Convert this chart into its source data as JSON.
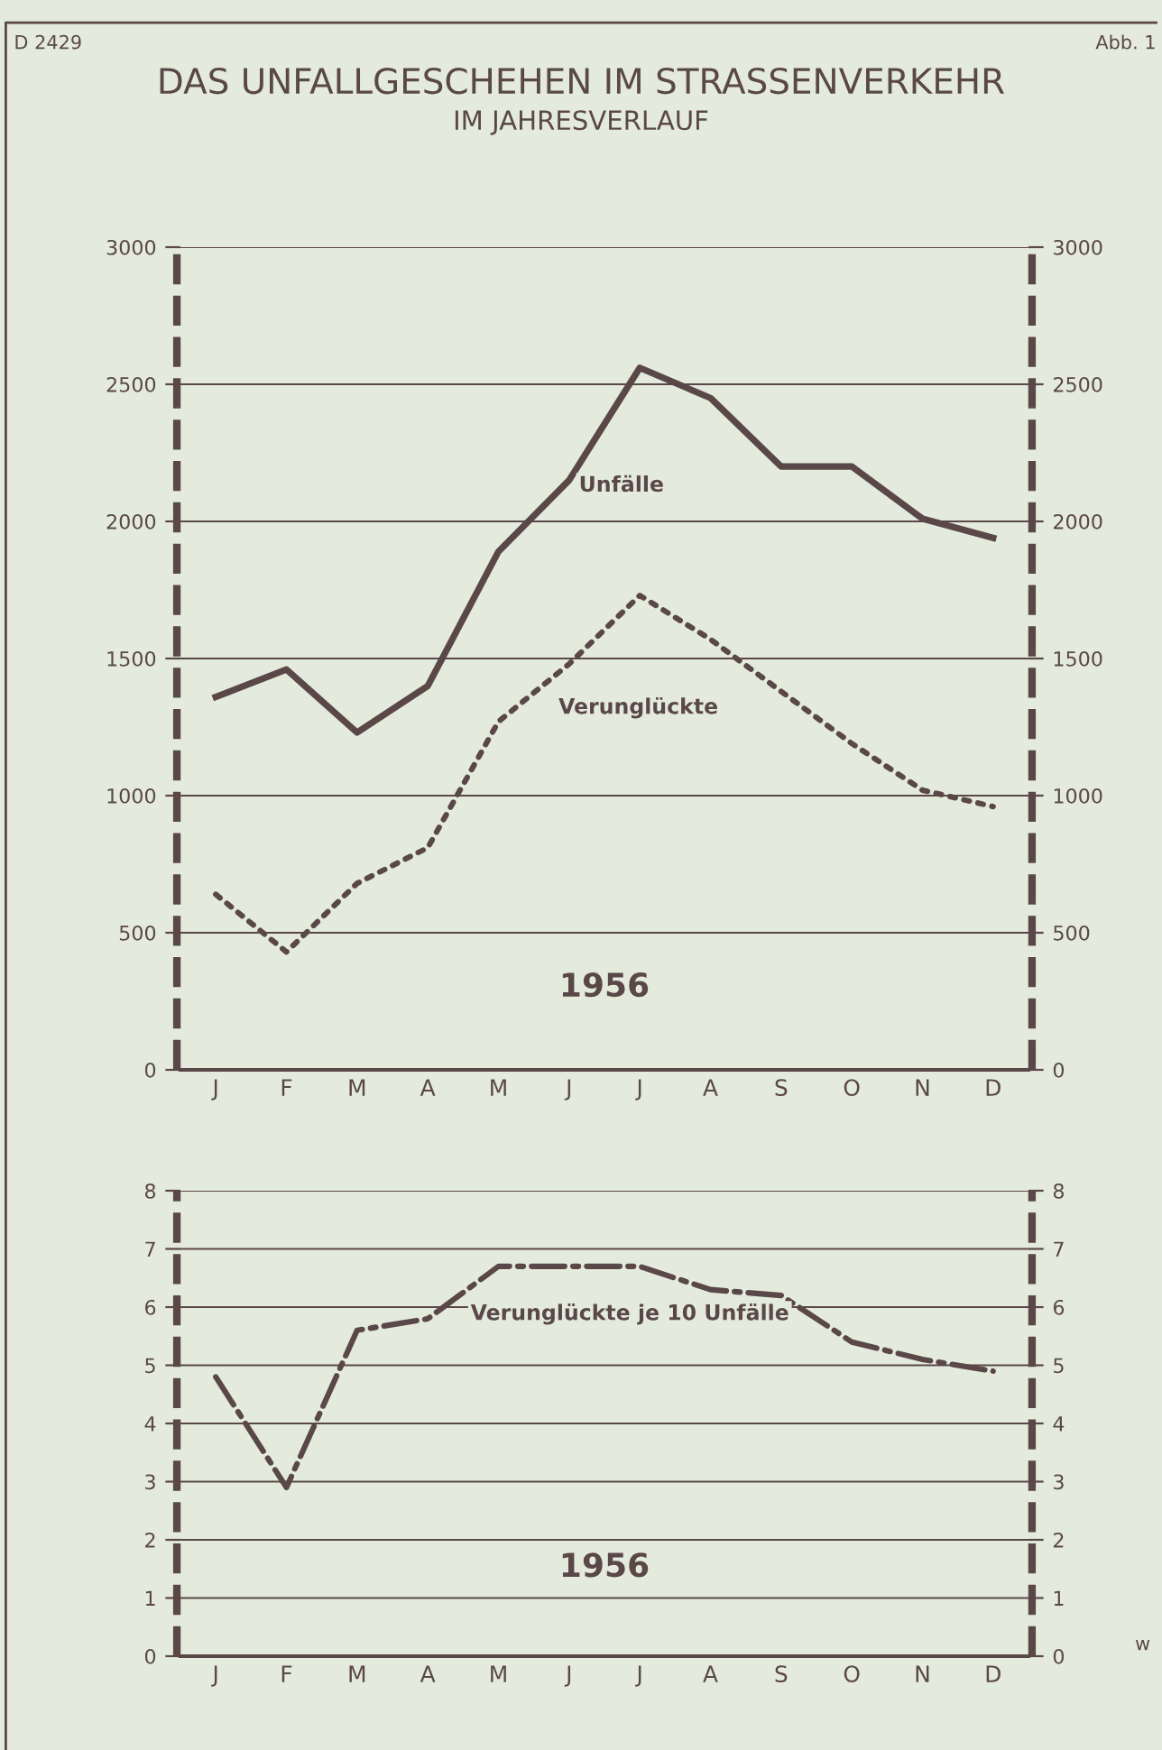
{
  "chart_data": [
    {
      "type": "line",
      "title": "DAS UNFALLGESCHEHEN IM STRASSENVERKEHR",
      "subtitle": "IM JAHRESVERLAUF",
      "annotations": [
        "D 2429",
        "Abb. 1",
        "1956"
      ],
      "categories": [
        "J",
        "F",
        "M",
        "A",
        "M",
        "J",
        "J",
        "A",
        "S",
        "O",
        "N",
        "D"
      ],
      "series": [
        {
          "name": "Unfälle",
          "color": "#5a4848",
          "line_style": "solid",
          "values": [
            1360,
            1460,
            1230,
            1400,
            1890,
            2150,
            2560,
            2450,
            2200,
            2200,
            2010,
            1940
          ]
        },
        {
          "name": "Verunglückte",
          "color": "#5a4848",
          "line_style": "dotted",
          "values": [
            640,
            430,
            680,
            810,
            1270,
            1480,
            1730,
            1570,
            1380,
            1190,
            1020,
            960
          ]
        }
      ],
      "ylim": [
        0,
        3000
      ],
      "yticks": [
        0,
        500,
        1000,
        1500,
        2000,
        2500,
        3000
      ],
      "y2lim": [
        0,
        3000
      ],
      "y2ticks": [
        0,
        500,
        1000,
        1500,
        2000,
        2500,
        3000
      ],
      "grid": "y",
      "legend": false,
      "marker": "none"
    },
    {
      "type": "line",
      "annotations": [
        "1956",
        "w"
      ],
      "categories": [
        "J",
        "F",
        "M",
        "A",
        "M",
        "J",
        "J",
        "A",
        "S",
        "O",
        "N",
        "D"
      ],
      "series": [
        {
          "name": "Verunglückte je 10 Unfälle",
          "color": "#5a4848",
          "line_style": "dashed",
          "values": [
            4.8,
            2.9,
            5.6,
            5.8,
            6.7,
            6.7,
            6.7,
            6.3,
            6.2,
            5.4,
            5.1,
            4.9
          ]
        }
      ],
      "ylim": [
        0,
        8
      ],
      "yticks": [
        0,
        1,
        2,
        3,
        4,
        5,
        6,
        7,
        8
      ],
      "y2lim": [
        0,
        8
      ],
      "y2ticks": [
        0,
        1,
        2,
        3,
        4,
        5,
        6,
        7,
        8
      ],
      "grid": "y",
      "legend": false,
      "marker": "none"
    }
  ]
}
